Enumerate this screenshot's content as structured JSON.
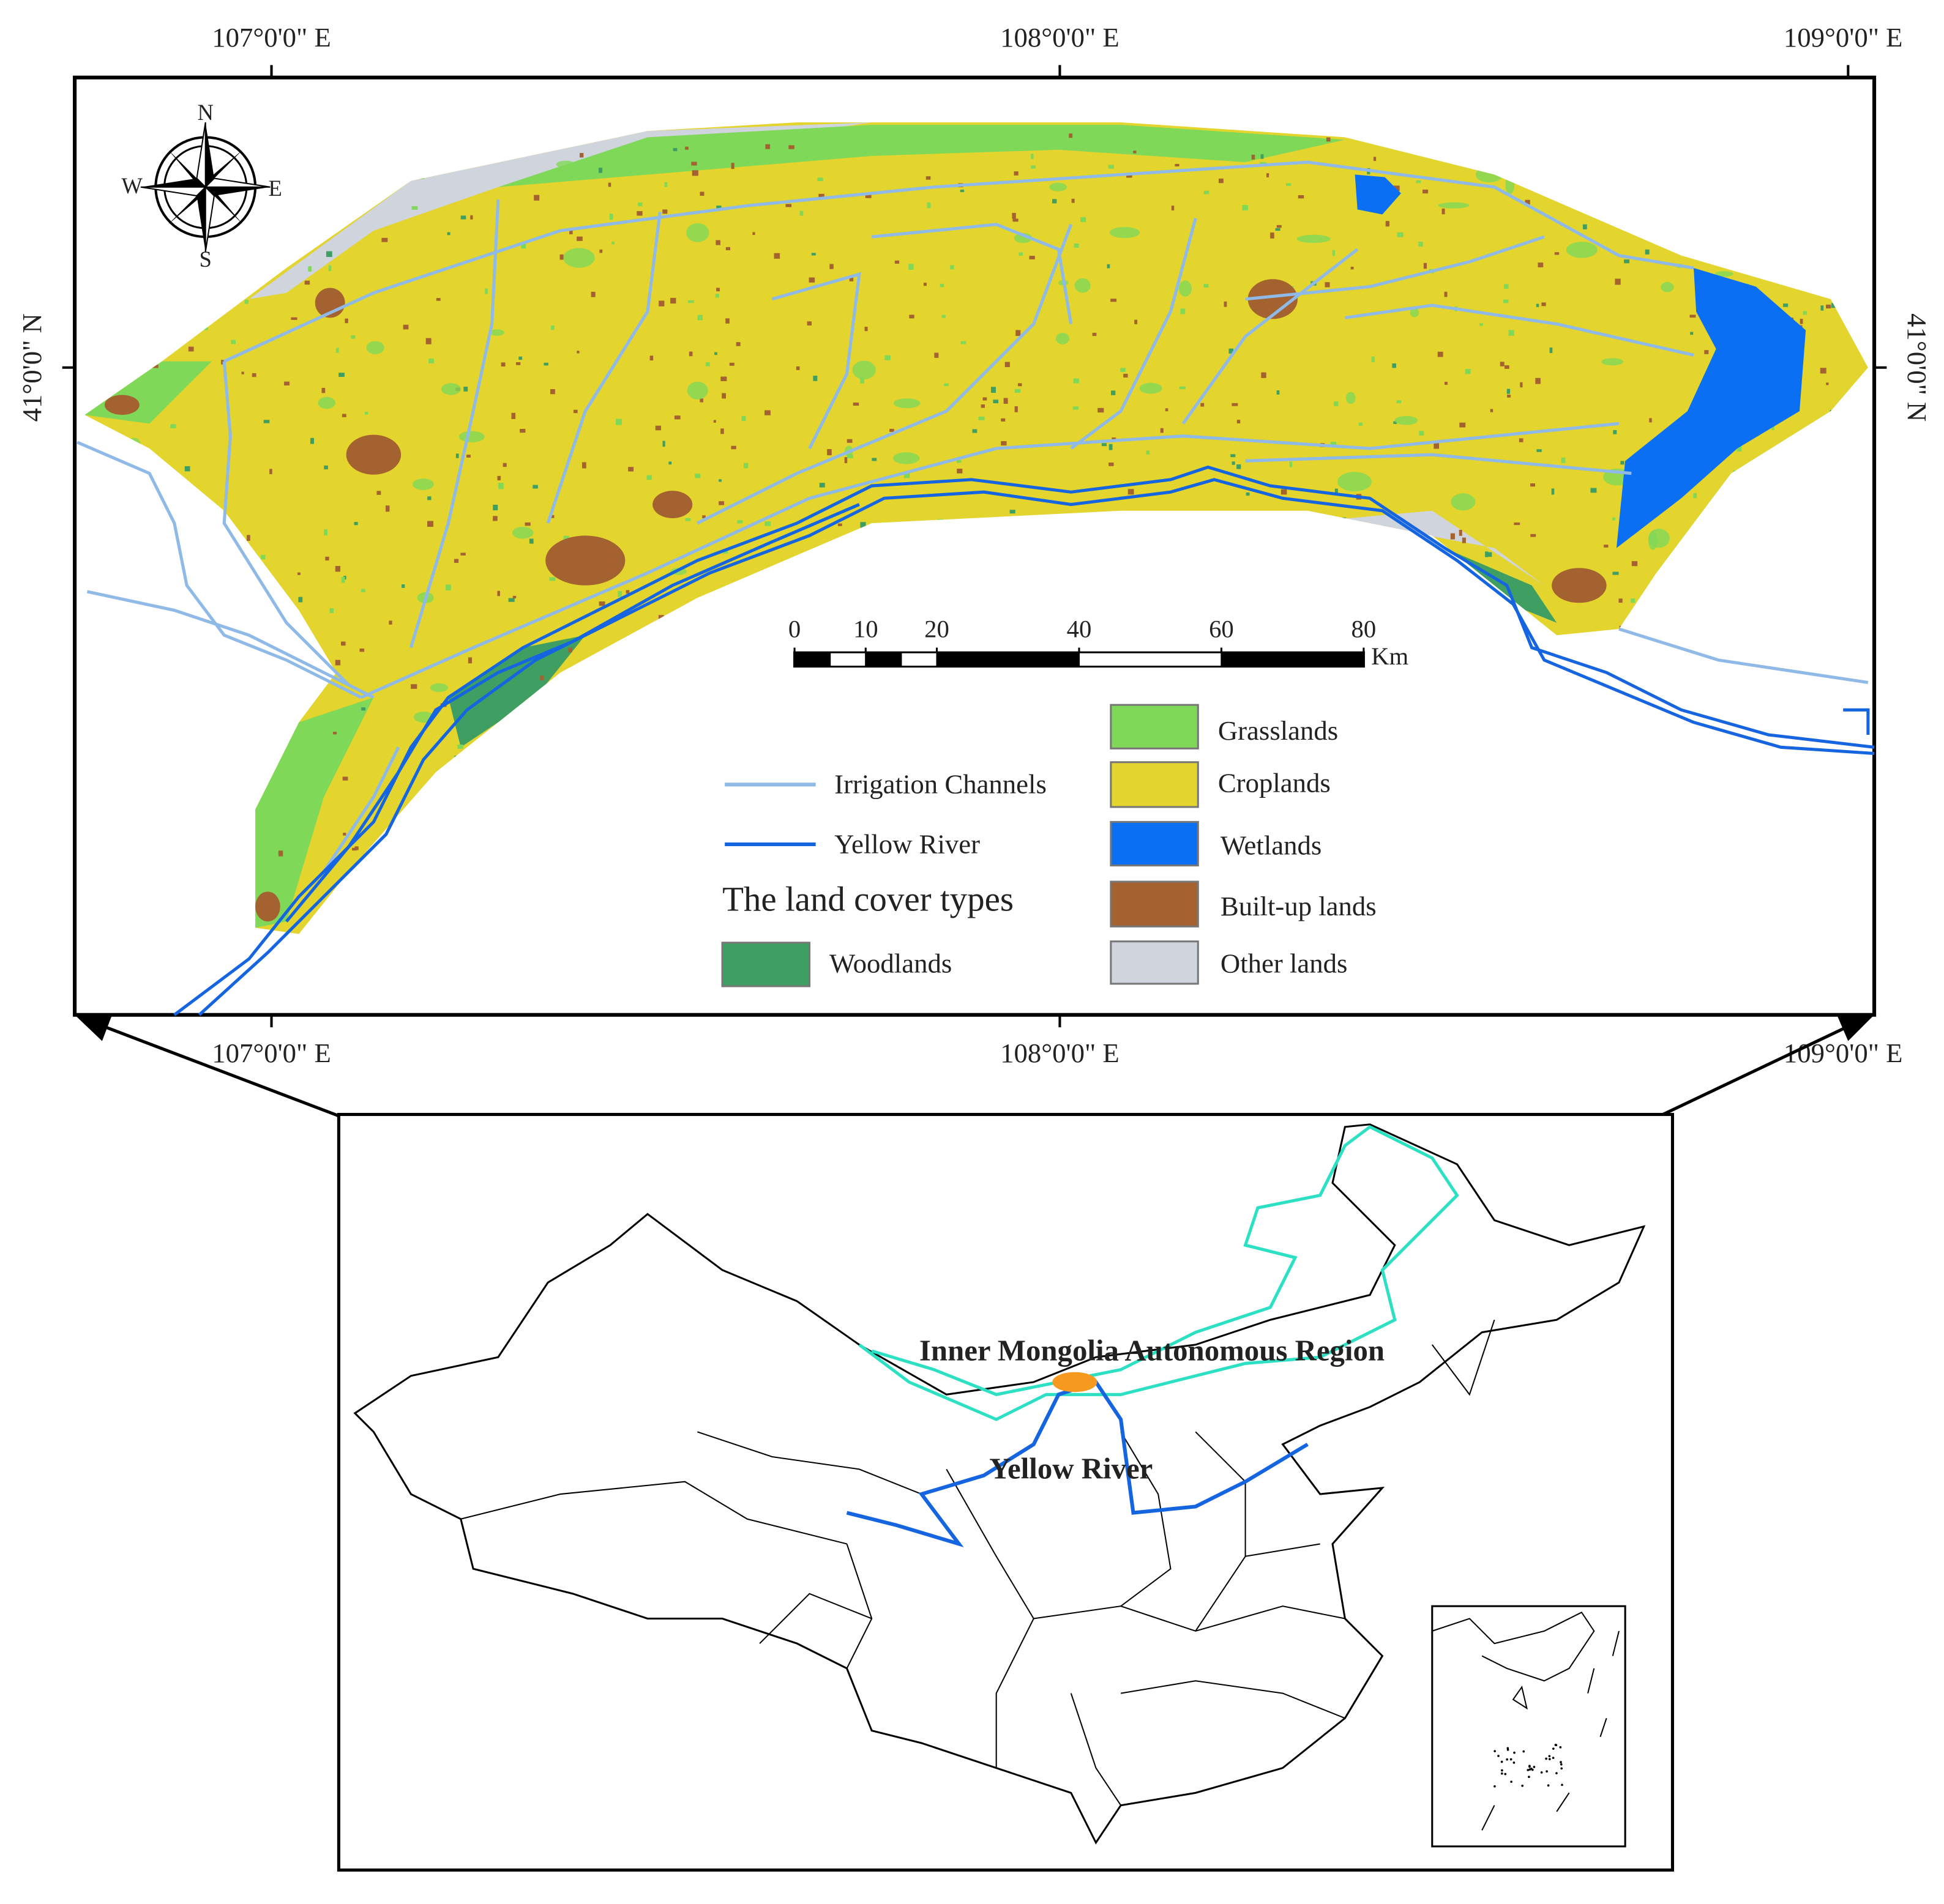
{
  "map": {
    "longitude_labels_top": [
      "107°0'0\" E",
      "108°0'0\" E",
      "109°0'0\" E"
    ],
    "longitude_labels_bottom": [
      "107°0'0\" E",
      "108°0'0\" E",
      "109°0'0\" E"
    ],
    "latitude_label_left": "41°0'0\" N",
    "latitude_label_right": "41°0'0\" N",
    "compass": {
      "north": "N",
      "south": "S",
      "west": "W",
      "east": "E"
    },
    "scale_bar": {
      "ticks": [
        0,
        10,
        20,
        40,
        60,
        80
      ],
      "unit": "Km"
    },
    "legend": {
      "lines": [
        {
          "label": "Irrigation Channels",
          "color": "#8fb9e6"
        },
        {
          "label": "Yellow River",
          "color": "#1565e0"
        }
      ],
      "title": "The land cover types",
      "classes": [
        {
          "label": "Woodlands",
          "color": "#3f9f62"
        },
        {
          "label": "Grasslands",
          "color": "#7fd858"
        },
        {
          "label": "Croplands",
          "color": "#e3d42e"
        },
        {
          "label": "Wetlands",
          "color": "#0a6ff2"
        },
        {
          "label": "Built-up lands",
          "color": "#a3622f"
        },
        {
          "label": "Other lands",
          "color": "#d0d4dd"
        }
      ]
    }
  },
  "inset": {
    "region_label": "Inner Mongolia Autonomous Region",
    "river_label": "Yellow River",
    "region_color": "#2de0c4",
    "study_area_color": "#f59a1e"
  }
}
